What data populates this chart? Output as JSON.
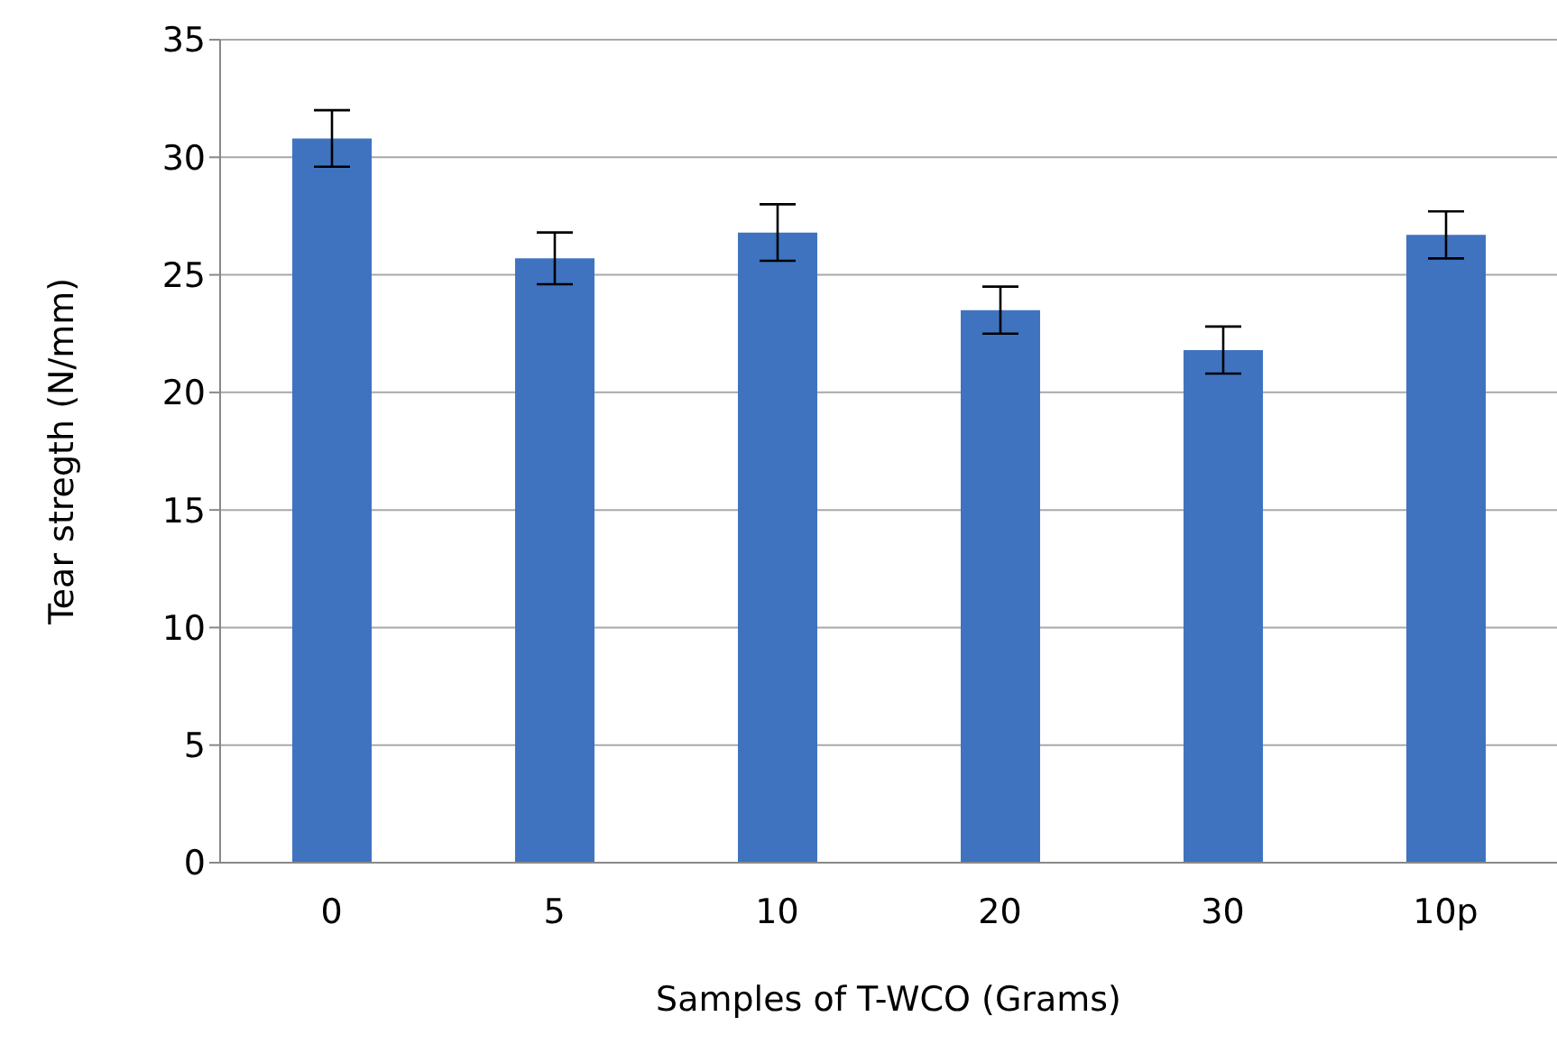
{
  "chart_data": {
    "type": "bar",
    "xlabel": "Samples of T-WCO (Grams)",
    "ylabel": "Tear stregth (N/mm)",
    "categories": [
      "0",
      "5",
      "10",
      "20",
      "30",
      "10p"
    ],
    "values": [
      30.8,
      25.7,
      26.8,
      23.5,
      21.8,
      26.7
    ],
    "errors": [
      1.2,
      1.1,
      1.2,
      1.0,
      1.0,
      1.0
    ],
    "color": "#3f73c0",
    "ylim": [
      0,
      35
    ],
    "yticks": [
      0,
      5,
      10,
      15,
      20,
      25,
      30,
      35
    ],
    "grid": "y"
  }
}
